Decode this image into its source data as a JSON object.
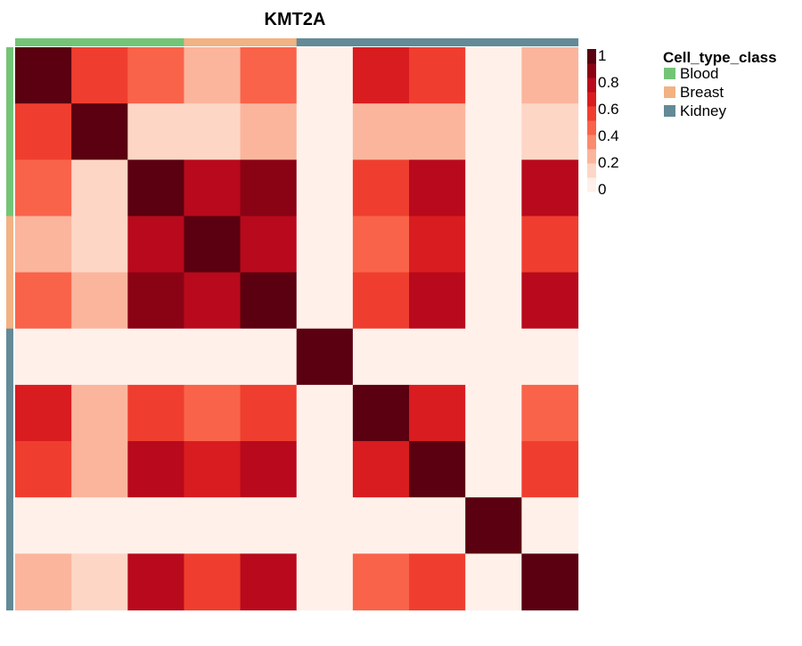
{
  "chart_data": {
    "type": "heatmap",
    "title": "KMT2A",
    "n": 10,
    "row_groups": [
      "Blood",
      "Blood",
      "Blood",
      "Breast",
      "Breast",
      "Kidney",
      "Kidney",
      "Kidney",
      "Kidney",
      "Kidney"
    ],
    "col_groups": [
      "Blood",
      "Blood",
      "Blood",
      "Breast",
      "Breast",
      "Kidney",
      "Kidney",
      "Kidney",
      "Kidney",
      "Kidney"
    ],
    "values": [
      [
        1.0,
        0.5,
        0.4,
        0.2,
        0.4,
        0.0,
        0.6,
        0.5,
        0.0,
        0.2
      ],
      [
        0.5,
        1.0,
        0.1,
        0.1,
        0.25,
        0.0,
        0.25,
        0.25,
        0.0,
        0.1
      ],
      [
        0.4,
        0.1,
        1.0,
        0.7,
        0.8,
        0.0,
        0.5,
        0.7,
        0.0,
        0.7
      ],
      [
        0.2,
        0.1,
        0.7,
        1.0,
        0.7,
        0.0,
        0.4,
        0.6,
        0.0,
        0.5
      ],
      [
        0.4,
        0.25,
        0.8,
        0.7,
        1.0,
        0.0,
        0.5,
        0.7,
        0.0,
        0.7
      ],
      [
        0.0,
        0.0,
        0.0,
        0.0,
        0.0,
        1.0,
        0.0,
        0.0,
        0.0,
        0.0
      ],
      [
        0.6,
        0.25,
        0.5,
        0.4,
        0.5,
        0.0,
        1.0,
        0.6,
        0.0,
        0.4
      ],
      [
        0.5,
        0.25,
        0.7,
        0.6,
        0.7,
        0.0,
        0.6,
        1.0,
        0.0,
        0.5
      ],
      [
        0.0,
        0.0,
        0.0,
        0.0,
        0.0,
        0.0,
        0.0,
        0.0,
        1.0,
        0.0
      ],
      [
        0.2,
        0.1,
        0.7,
        0.5,
        0.7,
        0.0,
        0.4,
        0.5,
        0.0,
        1.0
      ]
    ],
    "colorscale": {
      "min": 0,
      "max": 1,
      "ticks": [
        "1",
        "0.8",
        "0.6",
        "0.4",
        "0.2",
        "0"
      ],
      "stops": [
        "#fff0ea",
        "#fdd6c6",
        "#fbb59d",
        "#fa8b6d",
        "#f9634a",
        "#ef3e2f",
        "#d91c20",
        "#b80a1c",
        "#8a0315",
        "#5a0010"
      ]
    },
    "legend": {
      "title": "Cell_type_class",
      "placement": "right",
      "items": [
        {
          "label": "Blood",
          "color": "#74c476"
        },
        {
          "label": "Breast",
          "color": "#f2b283"
        },
        {
          "label": "Kidney",
          "color": "#638a96"
        }
      ]
    }
  }
}
